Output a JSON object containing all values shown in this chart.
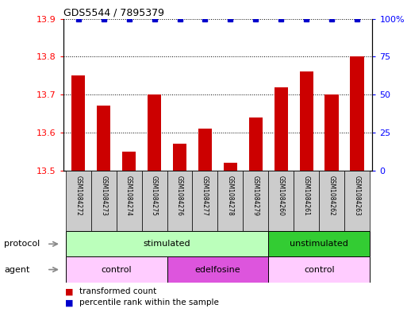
{
  "title": "GDS5544 / 7895379",
  "samples": [
    "GSM1084272",
    "GSM1084273",
    "GSM1084274",
    "GSM1084275",
    "GSM1084276",
    "GSM1084277",
    "GSM1084278",
    "GSM1084279",
    "GSM1084260",
    "GSM1084261",
    "GSM1084262",
    "GSM1084263"
  ],
  "bar_values": [
    13.75,
    13.67,
    13.55,
    13.7,
    13.57,
    13.61,
    13.52,
    13.64,
    13.72,
    13.76,
    13.7,
    13.8
  ],
  "percentile_values": [
    100,
    100,
    100,
    100,
    100,
    100,
    100,
    100,
    100,
    100,
    100,
    100
  ],
  "bar_color": "#cc0000",
  "percentile_color": "#0000cc",
  "ylim_left": [
    13.5,
    13.9
  ],
  "ylim_right": [
    0,
    100
  ],
  "yticks_left": [
    13.5,
    13.6,
    13.7,
    13.8,
    13.9
  ],
  "yticks_right": [
    0,
    25,
    50,
    75,
    100
  ],
  "protocol_groups": [
    {
      "label": "stimulated",
      "start": 0,
      "end": 8,
      "color": "#bbffbb"
    },
    {
      "label": "unstimulated",
      "start": 8,
      "end": 12,
      "color": "#33cc33"
    }
  ],
  "agent_groups": [
    {
      "label": "control",
      "start": 0,
      "end": 4,
      "color": "#ffccff"
    },
    {
      "label": "edelfosine",
      "start": 4,
      "end": 8,
      "color": "#dd55dd"
    },
    {
      "label": "control",
      "start": 8,
      "end": 12,
      "color": "#ffccff"
    }
  ],
  "legend_red_label": "transformed count",
  "legend_blue_label": "percentile rank within the sample",
  "sample_box_color": "#cccccc",
  "left_label_protocol": "protocol",
  "left_label_agent": "agent"
}
